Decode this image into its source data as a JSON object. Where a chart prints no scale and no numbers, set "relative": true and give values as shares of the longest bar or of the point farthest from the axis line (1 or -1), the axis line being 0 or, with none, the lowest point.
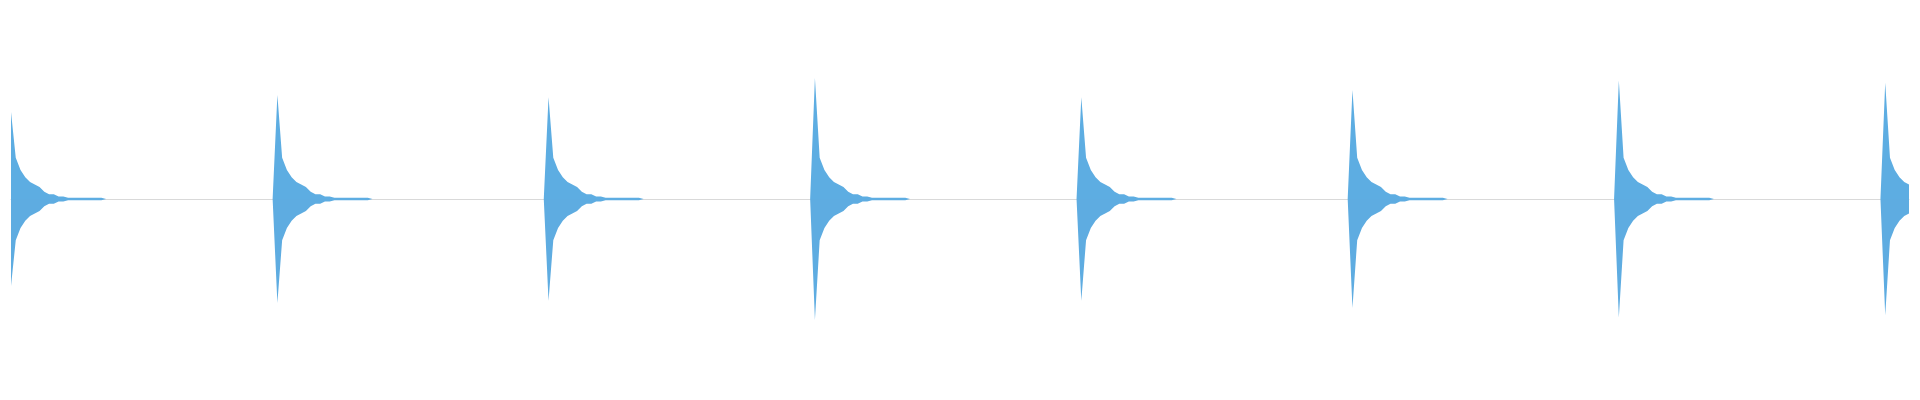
{
  "chart_data": {
    "type": "area",
    "relative": true,
    "grid": false,
    "categories": [
      null,
      null,
      null,
      null,
      null,
      null,
      null,
      null,
      null,
      null,
      null,
      null,
      null,
      null,
      null,
      null,
      null,
      null,
      null,
      null,
      null,
      null,
      null,
      null,
      null,
      null,
      null,
      null,
      null,
      null,
      null,
      null,
      null,
      null,
      null,
      null,
      null,
      null,
      null,
      null,
      null,
      null,
      null,
      null,
      null,
      null,
      null,
      null,
      null,
      null,
      null,
      null,
      null,
      null,
      null,
      null,
      null,
      null,
      null,
      null,
      null,
      null,
      null,
      null,
      null,
      null,
      null,
      null,
      null,
      null,
      null,
      null,
      null,
      null,
      null,
      null,
      null,
      null,
      null,
      null,
      null,
      null,
      null,
      null,
      null,
      null,
      null,
      null,
      null,
      null,
      null,
      null,
      null,
      null,
      null,
      null,
      null,
      null,
      null,
      null,
      null,
      null,
      null,
      null,
      null,
      null,
      null,
      null,
      null,
      null,
      null,
      null,
      null,
      null,
      null,
      null,
      null,
      null,
      null,
      null,
      null,
      null,
      null,
      null,
      null,
      null,
      null,
      null,
      null,
      null,
      null,
      null,
      null,
      null,
      null,
      null,
      null,
      null,
      null,
      null,
      null,
      null,
      null,
      null,
      null,
      null,
      null,
      null,
      null,
      null,
      null,
      null,
      null,
      null,
      null,
      null,
      null,
      null,
      null,
      null,
      null,
      null,
      null,
      null,
      null,
      null,
      null,
      null,
      null,
      null,
      null,
      null,
      null,
      null,
      null,
      null,
      null,
      null,
      null,
      null,
      null,
      null,
      null,
      null,
      null,
      null,
      null,
      null,
      null,
      null,
      null,
      null,
      null,
      null,
      null,
      null,
      null,
      null,
      null,
      null,
      null,
      null,
      null,
      null,
      null,
      null,
      null,
      null,
      null,
      null,
      null,
      null,
      null,
      null,
      null,
      null,
      null,
      null,
      null,
      null,
      null,
      null,
      null,
      null,
      null,
      null,
      null,
      null,
      null,
      null,
      null,
      null,
      null,
      null,
      null,
      null,
      null,
      null,
      null,
      null,
      null,
      null,
      null,
      null,
      null,
      null,
      null,
      null,
      null,
      null,
      null,
      null,
      null,
      null,
      null,
      null,
      null,
      null,
      null,
      null,
      null,
      null,
      null,
      null,
      null,
      null,
      null,
      null,
      null,
      null,
      null,
      null,
      null,
      null,
      null,
      null,
      null,
      null,
      null,
      null,
      null,
      null,
      null,
      null,
      null,
      null,
      null,
      null,
      null,
      null,
      null,
      null,
      null,
      null,
      null,
      null,
      null,
      null,
      null,
      null,
      null,
      null,
      null,
      null,
      null,
      null,
      null,
      null,
      null,
      null,
      null,
      null,
      null,
      null,
      null,
      null,
      null,
      null,
      null,
      null,
      null,
      null,
      null,
      null,
      null,
      null,
      null,
      null,
      null,
      null,
      null,
      null,
      null,
      null,
      null,
      null,
      null,
      null,
      null,
      null,
      null,
      null,
      null,
      null,
      null,
      null,
      null,
      null,
      null,
      null,
      null,
      null,
      null,
      null,
      null,
      null,
      null,
      null,
      null,
      null,
      null,
      null,
      null,
      null,
      null,
      null,
      null,
      null,
      null,
      null,
      null,
      null,
      null,
      null,
      null,
      null,
      null,
      null,
      null,
      null,
      null,
      null,
      null,
      null,
      null,
      null,
      null,
      null,
      null,
      null,
      null,
      null,
      null,
      null,
      null,
      null,
      null,
      null,
      null,
      null
    ],
    "series": [
      {
        "color": "#5dade2",
        "values": [
          0.72,
          0.34,
          0.24,
          0.18,
          0.14,
          0.12,
          0.1,
          0.06,
          0.04,
          0.04,
          0.02,
          0.02,
          0.01,
          0.01,
          0.01,
          0.01,
          0.01,
          0.01,
          0.01,
          0.01,
          0,
          0,
          0,
          0,
          0,
          0,
          0,
          0,
          0,
          0,
          0,
          0,
          0,
          0,
          0,
          0,
          0,
          0,
          0,
          0,
          0,
          0,
          0,
          0,
          0,
          0,
          0,
          0,
          0,
          0,
          0,
          0,
          0,
          0,
          0,
          0,
          0.86,
          0.34,
          0.24,
          0.18,
          0.14,
          0.12,
          0.1,
          0.06,
          0.04,
          0.04,
          0.02,
          0.02,
          0.01,
          0.01,
          0.01,
          0.01,
          0.01,
          0.01,
          0.01,
          0.01,
          0,
          0,
          0,
          0,
          0,
          0,
          0,
          0,
          0,
          0,
          0,
          0,
          0,
          0,
          0,
          0,
          0,
          0,
          0,
          0,
          0,
          0,
          0,
          0,
          0,
          0,
          0,
          0,
          0,
          0,
          0,
          0,
          0,
          0,
          0,
          0,
          0,
          0.84,
          0.34,
          0.24,
          0.18,
          0.14,
          0.12,
          0.1,
          0.06,
          0.04,
          0.04,
          0.02,
          0.02,
          0.01,
          0.01,
          0.01,
          0.01,
          0.01,
          0.01,
          0.01,
          0.01,
          0,
          0,
          0,
          0,
          0,
          0,
          0,
          0,
          0,
          0,
          0,
          0,
          0,
          0,
          0,
          0,
          0,
          0,
          0,
          0,
          0,
          0,
          0,
          0,
          0,
          0,
          0,
          0,
          0,
          0,
          0,
          0,
          0,
          0,
          0,
          0,
          1,
          0.34,
          0.24,
          0.18,
          0.14,
          0.12,
          0.1,
          0.06,
          0.04,
          0.04,
          0.02,
          0.02,
          0.01,
          0.01,
          0.01,
          0.01,
          0.01,
          0.01,
          0.01,
          0.01,
          0,
          0,
          0,
          0,
          0,
          0,
          0,
          0,
          0,
          0,
          0,
          0,
          0,
          0,
          0,
          0,
          0,
          0,
          0,
          0,
          0,
          0,
          0,
          0,
          0,
          0,
          0,
          0,
          0,
          0,
          0,
          0,
          0,
          0,
          0,
          0,
          0.84,
          0.34,
          0.24,
          0.18,
          0.14,
          0.12,
          0.1,
          0.06,
          0.04,
          0.04,
          0.02,
          0.02,
          0.01,
          0.01,
          0.01,
          0.01,
          0.01,
          0.01,
          0.01,
          0.01,
          0,
          0,
          0,
          0,
          0,
          0,
          0,
          0,
          0,
          0,
          0,
          0,
          0,
          0,
          0,
          0,
          0,
          0,
          0,
          0,
          0,
          0,
          0,
          0,
          0,
          0,
          0,
          0,
          0,
          0,
          0,
          0,
          0,
          0,
          0,
          0,
          0,
          0.9,
          0.34,
          0.24,
          0.18,
          0.14,
          0.12,
          0.1,
          0.06,
          0.04,
          0.04,
          0.02,
          0.02,
          0.01,
          0.01,
          0.01,
          0.01,
          0.01,
          0.01,
          0.01,
          0.01,
          0,
          0,
          0,
          0,
          0,
          0,
          0,
          0,
          0,
          0,
          0,
          0,
          0,
          0,
          0,
          0,
          0,
          0,
          0,
          0,
          0,
          0,
          0,
          0,
          0,
          0,
          0,
          0,
          0,
          0,
          0,
          0,
          0,
          0,
          0,
          0,
          0.98,
          0.34,
          0.24,
          0.18,
          0.14,
          0.12,
          0.1,
          0.06,
          0.04,
          0.04,
          0.02,
          0.02,
          0.01,
          0.01,
          0.01,
          0.01,
          0.01,
          0.01,
          0.01,
          0.01,
          0,
          0,
          0,
          0,
          0,
          0,
          0,
          0,
          0,
          0,
          0,
          0,
          0,
          0,
          0,
          0,
          0,
          0,
          0,
          0,
          0,
          0,
          0,
          0,
          0,
          0,
          0,
          0,
          0,
          0,
          0,
          0,
          0,
          0,
          0,
          0,
          0.96,
          0.34,
          0.24,
          0.18,
          0.14,
          0.12
        ]
      },
      {
        "color": "#5eace1",
        "values": [
          -0.72,
          -0.34,
          -0.24,
          -0.18,
          -0.14,
          -0.12,
          -0.1,
          -0.06,
          -0.04,
          -0.04,
          -0.02,
          -0.02,
          -0.01,
          -0.01,
          -0.01,
          -0.01,
          -0.01,
          -0.01,
          -0.01,
          -0.01,
          0,
          0,
          0,
          0,
          0,
          0,
          0,
          0,
          0,
          0,
          0,
          0,
          0,
          0,
          0,
          0,
          0,
          0,
          0,
          0,
          0,
          0,
          0,
          0,
          0,
          0,
          0,
          0,
          0,
          0,
          0,
          0,
          0,
          0,
          0,
          0,
          -0.86,
          -0.34,
          -0.24,
          -0.18,
          -0.14,
          -0.12,
          -0.1,
          -0.06,
          -0.04,
          -0.04,
          -0.02,
          -0.02,
          -0.01,
          -0.01,
          -0.01,
          -0.01,
          -0.01,
          -0.01,
          -0.01,
          -0.01,
          0,
          0,
          0,
          0,
          0,
          0,
          0,
          0,
          0,
          0,
          0,
          0,
          0,
          0,
          0,
          0,
          0,
          0,
          0,
          0,
          0,
          0,
          0,
          0,
          0,
          0,
          0,
          0,
          0,
          0,
          0,
          0,
          0,
          0,
          0,
          0,
          0,
          -0.84,
          -0.34,
          -0.24,
          -0.18,
          -0.14,
          -0.12,
          -0.1,
          -0.06,
          -0.04,
          -0.04,
          -0.02,
          -0.02,
          -0.01,
          -0.01,
          -0.01,
          -0.01,
          -0.01,
          -0.01,
          -0.01,
          -0.01,
          0,
          0,
          0,
          0,
          0,
          0,
          0,
          0,
          0,
          0,
          0,
          0,
          0,
          0,
          0,
          0,
          0,
          0,
          0,
          0,
          0,
          0,
          0,
          0,
          0,
          0,
          0,
          0,
          0,
          0,
          0,
          0,
          0,
          0,
          0,
          0,
          -1,
          -0.34,
          -0.24,
          -0.18,
          -0.14,
          -0.12,
          -0.1,
          -0.06,
          -0.04,
          -0.04,
          -0.02,
          -0.02,
          -0.01,
          -0.01,
          -0.01,
          -0.01,
          -0.01,
          -0.01,
          -0.01,
          -0.01,
          0,
          0,
          0,
          0,
          0,
          0,
          0,
          0,
          0,
          0,
          0,
          0,
          0,
          0,
          0,
          0,
          0,
          0,
          0,
          0,
          0,
          0,
          0,
          0,
          0,
          0,
          0,
          0,
          0,
          0,
          0,
          0,
          0,
          0,
          0,
          0,
          -0.84,
          -0.34,
          -0.24,
          -0.18,
          -0.14,
          -0.12,
          -0.1,
          -0.06,
          -0.04,
          -0.04,
          -0.02,
          -0.02,
          -0.01,
          -0.01,
          -0.01,
          -0.01,
          -0.01,
          -0.01,
          -0.01,
          -0.01,
          0,
          0,
          0,
          0,
          0,
          0,
          0,
          0,
          0,
          0,
          0,
          0,
          0,
          0,
          0,
          0,
          0,
          0,
          0,
          0,
          0,
          0,
          0,
          0,
          0,
          0,
          0,
          0,
          0,
          0,
          0,
          0,
          0,
          0,
          0,
          0,
          0,
          -0.9,
          -0.34,
          -0.24,
          -0.18,
          -0.14,
          -0.12,
          -0.1,
          -0.06,
          -0.04,
          -0.04,
          -0.02,
          -0.02,
          -0.01,
          -0.01,
          -0.01,
          -0.01,
          -0.01,
          -0.01,
          -0.01,
          -0.01,
          0,
          0,
          0,
          0,
          0,
          0,
          0,
          0,
          0,
          0,
          0,
          0,
          0,
          0,
          0,
          0,
          0,
          0,
          0,
          0,
          0,
          0,
          0,
          0,
          0,
          0,
          0,
          0,
          0,
          0,
          0,
          0,
          0,
          0,
          0,
          0,
          -0.98,
          -0.34,
          -0.24,
          -0.18,
          -0.14,
          -0.12,
          -0.1,
          -0.06,
          -0.04,
          -0.04,
          -0.02,
          -0.02,
          -0.01,
          -0.01,
          -0.01,
          -0.01,
          -0.01,
          -0.01,
          -0.01,
          -0.01,
          0,
          0,
          0,
          0,
          0,
          0,
          0,
          0,
          0,
          0,
          0,
          0,
          0,
          0,
          0,
          0,
          0,
          0,
          0,
          0,
          0,
          0,
          0,
          0,
          0,
          0,
          0,
          0,
          0,
          0,
          0,
          0,
          0,
          0,
          0,
          0,
          -0.96,
          -0.34,
          -0.24,
          -0.18,
          -0.14,
          -0.12
        ]
      }
    ]
  }
}
